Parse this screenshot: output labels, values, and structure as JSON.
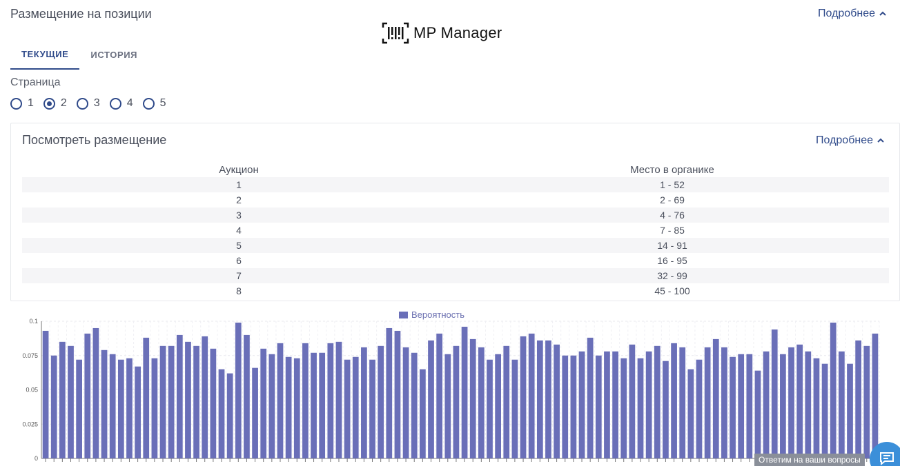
{
  "header": {
    "title": "Размещение на позиции",
    "more": "Подробнее"
  },
  "logo": {
    "text": "MP Manager"
  },
  "tabs": [
    {
      "label": "ТЕКУЩИЕ",
      "active": true
    },
    {
      "label": "ИСТОРИЯ",
      "active": false
    }
  ],
  "page_selector": {
    "label": "Страница",
    "options": [
      "1",
      "2",
      "3",
      "4",
      "5"
    ],
    "selected": "2"
  },
  "panel": {
    "title": "Посмотреть размещение",
    "more": "Подробнее",
    "columns": [
      "Аукцион",
      "Место в органике"
    ],
    "rows": [
      [
        "1",
        "1 - 52"
      ],
      [
        "2",
        "2 - 69"
      ],
      [
        "3",
        "4 - 76"
      ],
      [
        "4",
        "7 - 85"
      ],
      [
        "5",
        "14 - 91"
      ],
      [
        "6",
        "16 - 95"
      ],
      [
        "7",
        "32 - 99"
      ],
      [
        "8",
        "45 - 100"
      ]
    ]
  },
  "chart_data": {
    "type": "bar",
    "title": "",
    "xlabel": "",
    "ylabel": "",
    "ylim": [
      0,
      0.1
    ],
    "yticks": [
      "0",
      "0.025",
      "0.05",
      "0.075",
      "0.1"
    ],
    "grid": true,
    "legend": "top-center",
    "color": "#6a6fb8",
    "series": [
      {
        "name": "Вероятность",
        "values": [
          0.093,
          0.075,
          0.085,
          0.082,
          0.072,
          0.091,
          0.095,
          0.079,
          0.076,
          0.072,
          0.073,
          0.067,
          0.088,
          0.073,
          0.082,
          0.082,
          0.09,
          0.085,
          0.082,
          0.089,
          0.08,
          0.065,
          0.062,
          0.099,
          0.09,
          0.066,
          0.08,
          0.076,
          0.084,
          0.074,
          0.073,
          0.084,
          0.077,
          0.077,
          0.084,
          0.085,
          0.072,
          0.074,
          0.081,
          0.072,
          0.082,
          0.095,
          0.093,
          0.081,
          0.077,
          0.065,
          0.086,
          0.091,
          0.076,
          0.082,
          0.096,
          0.087,
          0.081,
          0.072,
          0.076,
          0.082,
          0.072,
          0.089,
          0.091,
          0.086,
          0.086,
          0.083,
          0.075,
          0.075,
          0.078,
          0.088,
          0.075,
          0.078,
          0.078,
          0.073,
          0.083,
          0.073,
          0.078,
          0.082,
          0.071,
          0.084,
          0.081,
          0.065,
          0.072,
          0.081,
          0.087,
          0.081,
          0.074,
          0.076,
          0.076,
          0.064,
          0.078,
          0.094,
          0.076,
          0.081,
          0.083,
          0.078,
          0.073,
          0.069,
          0.099,
          0.078,
          0.069,
          0.086,
          0.082,
          0.091
        ]
      }
    ]
  },
  "help": {
    "text": "Ответим на ваши вопросы"
  }
}
